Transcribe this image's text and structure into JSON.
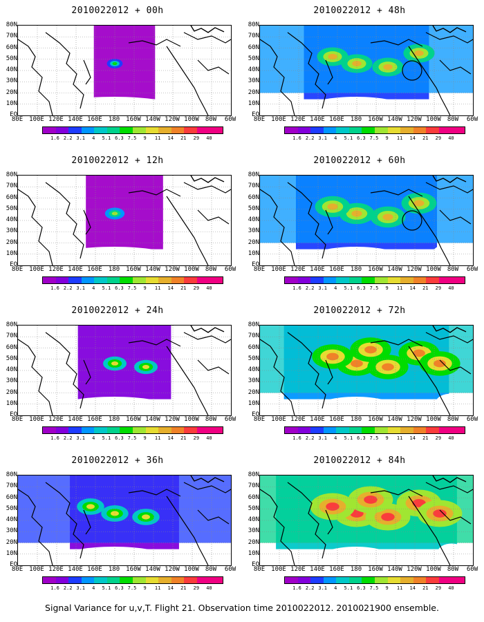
{
  "panels": [
    {
      "title": "2010022012 + 00h",
      "intensity": 0.05,
      "circle": false
    },
    {
      "title": "2010022012 + 48h",
      "intensity": 0.45,
      "circle": true
    },
    {
      "title": "2010022012 + 12h",
      "intensity": 0.15,
      "circle": false
    },
    {
      "title": "2010022012 + 60h",
      "intensity": 0.55,
      "circle": true
    },
    {
      "title": "2010022012 + 24h",
      "intensity": 0.25,
      "circle": false
    },
    {
      "title": "2010022012 + 72h",
      "intensity": 0.7,
      "circle": false
    },
    {
      "title": "2010022012 + 36h",
      "intensity": 0.35,
      "circle": false
    },
    {
      "title": "2010022012 + 84h",
      "intensity": 0.8,
      "circle": false
    }
  ],
  "lat_labels": [
    "80N",
    "70N",
    "60N",
    "50N",
    "40N",
    "30N",
    "20N",
    "10N",
    "EQ"
  ],
  "lon_labels": [
    "80E",
    "100E",
    "120E",
    "140E",
    "160E",
    "180",
    "160W",
    "140W",
    "120W",
    "100W",
    "80W",
    "60W"
  ],
  "colorbar": {
    "labels": [
      "1.6",
      "2.2",
      "3.1",
      "4",
      "5.1",
      "6.3",
      "7.5",
      "9",
      "11",
      "14",
      "21",
      "29",
      "40"
    ],
    "colors": [
      "#a000c8",
      "#8200dc",
      "#1e3cff",
      "#0096ff",
      "#00c8c8",
      "#00d28c",
      "#00dc00",
      "#a0e632",
      "#e6dc32",
      "#e6af2d",
      "#f08228",
      "#fa3c3c",
      "#f00082"
    ]
  },
  "footer": "Signal Variance for u,v,T. Flight 21. Observation time 2010022012. 2010021900 ensemble."
}
